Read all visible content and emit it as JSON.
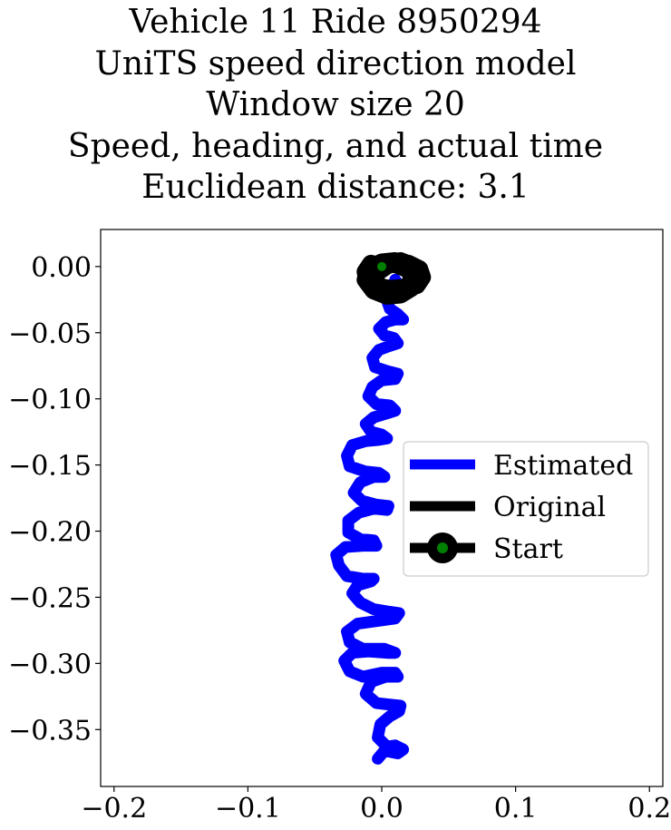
{
  "chart_data": {
    "type": "line",
    "title_lines": [
      "Vehicle 11 Ride 8950294",
      "UniTS speed direction model",
      "Window size 20",
      "Speed, heading, and actual time",
      "Euclidean distance: 3.1"
    ],
    "xlabel": "",
    "ylabel": "",
    "xlim": [
      -0.21,
      0.21
    ],
    "ylim": [
      -0.393,
      0.028
    ],
    "xticks": [
      -0.2,
      -0.1,
      0.0,
      0.1,
      0.2
    ],
    "xtick_labels": [
      "−0.2",
      "−0.1",
      "0.0",
      "0.1",
      "0.2"
    ],
    "yticks": [
      0.0,
      -0.05,
      -0.1,
      -0.15,
      -0.2,
      -0.25,
      -0.3,
      -0.35
    ],
    "ytick_labels": [
      "0.00",
      "−0.05",
      "−0.10",
      "−0.15",
      "−0.20",
      "−0.25",
      "−0.30",
      "−0.35"
    ],
    "grid": false,
    "legend_position": "center-right",
    "series": [
      {
        "name": "Estimated",
        "color": "#0000ff",
        "points": [
          [
            -0.003,
            -0.372
          ],
          [
            0.002,
            -0.366
          ],
          [
            0.012,
            -0.368
          ],
          [
            0.016,
            -0.365
          ],
          [
            0.01,
            -0.362
          ],
          [
            0.004,
            -0.363
          ],
          [
            -0.003,
            -0.356
          ],
          [
            -0.001,
            -0.346
          ],
          [
            0.006,
            -0.34
          ],
          [
            0.013,
            -0.336
          ],
          [
            0.014,
            -0.332
          ],
          [
            0.005,
            -0.331
          ],
          [
            -0.004,
            -0.33
          ],
          [
            -0.012,
            -0.323
          ],
          [
            -0.008,
            -0.314
          ],
          [
            0.003,
            -0.31
          ],
          [
            0.012,
            -0.31
          ],
          [
            0.01,
            -0.307
          ],
          [
            0.0,
            -0.307
          ],
          [
            -0.014,
            -0.31
          ],
          [
            -0.024,
            -0.306
          ],
          [
            -0.028,
            -0.298
          ],
          [
            -0.022,
            -0.292
          ],
          [
            -0.01,
            -0.291
          ],
          [
            0.004,
            -0.292
          ],
          [
            0.01,
            -0.292
          ],
          [
            0.002,
            -0.289
          ],
          [
            -0.014,
            -0.289
          ],
          [
            -0.024,
            -0.284
          ],
          [
            -0.026,
            -0.276
          ],
          [
            -0.018,
            -0.27
          ],
          [
            -0.004,
            -0.268
          ],
          [
            0.01,
            -0.266
          ],
          [
            0.013,
            -0.262
          ],
          [
            0.006,
            -0.261
          ],
          [
            -0.006,
            -0.259
          ],
          [
            -0.016,
            -0.254
          ],
          [
            -0.022,
            -0.247
          ],
          [
            -0.018,
            -0.241
          ],
          [
            -0.008,
            -0.238
          ],
          [
            -0.006,
            -0.236
          ],
          [
            -0.014,
            -0.236
          ],
          [
            -0.026,
            -0.234
          ],
          [
            -0.032,
            -0.226
          ],
          [
            -0.034,
            -0.218
          ],
          [
            -0.027,
            -0.212
          ],
          [
            -0.014,
            -0.211
          ],
          [
            -0.004,
            -0.211
          ],
          [
            -0.006,
            -0.207
          ],
          [
            -0.016,
            -0.206
          ],
          [
            -0.025,
            -0.201
          ],
          [
            -0.025,
            -0.192
          ],
          [
            -0.017,
            -0.186
          ],
          [
            -0.006,
            -0.183
          ],
          [
            0.004,
            -0.184
          ],
          [
            0.005,
            -0.181
          ],
          [
            -0.004,
            -0.18
          ],
          [
            -0.015,
            -0.177
          ],
          [
            -0.021,
            -0.171
          ],
          [
            -0.016,
            -0.163
          ],
          [
            -0.006,
            -0.159
          ],
          [
            0.002,
            -0.159
          ],
          [
            -0.002,
            -0.156
          ],
          [
            -0.012,
            -0.155
          ],
          [
            -0.024,
            -0.151
          ],
          [
            -0.026,
            -0.143
          ],
          [
            -0.022,
            -0.135
          ],
          [
            -0.012,
            -0.132
          ],
          [
            -0.002,
            -0.131
          ],
          [
            0.004,
            -0.13
          ],
          [
            0.0,
            -0.127
          ],
          [
            -0.008,
            -0.125
          ],
          [
            -0.012,
            -0.119
          ],
          [
            -0.006,
            -0.114
          ],
          [
            0.004,
            -0.111
          ],
          [
            0.01,
            -0.109
          ],
          [
            0.006,
            -0.105
          ],
          [
            -0.004,
            -0.104
          ],
          [
            -0.01,
            -0.098
          ],
          [
            -0.007,
            -0.091
          ],
          [
            0.0,
            -0.086
          ],
          [
            0.01,
            -0.085
          ],
          [
            0.012,
            -0.081
          ],
          [
            0.004,
            -0.079
          ],
          [
            -0.005,
            -0.076
          ],
          [
            -0.007,
            -0.069
          ],
          [
            -0.002,
            -0.063
          ],
          [
            0.006,
            -0.06
          ],
          [
            0.012,
            -0.058
          ],
          [
            0.009,
            -0.054
          ],
          [
            0.002,
            -0.052
          ],
          [
            -0.002,
            -0.047
          ],
          [
            0.003,
            -0.042
          ],
          [
            0.01,
            -0.04
          ],
          [
            0.016,
            -0.04
          ],
          [
            0.012,
            -0.036
          ],
          [
            0.006,
            -0.032
          ],
          [
            0.004,
            -0.026
          ],
          [
            0.008,
            -0.02
          ],
          [
            0.012,
            -0.013
          ],
          [
            0.01,
            -0.01
          ]
        ]
      },
      {
        "name": "Original",
        "color": "#000000",
        "points": [
          [
            0.0,
            0.0
          ],
          [
            -0.008,
            0.002
          ],
          [
            -0.012,
            -0.004
          ],
          [
            -0.01,
            -0.012
          ],
          [
            -0.002,
            -0.016
          ],
          [
            0.008,
            -0.017
          ],
          [
            0.018,
            -0.016
          ],
          [
            0.026,
            -0.014
          ],
          [
            0.03,
            -0.008
          ],
          [
            0.028,
            -0.002
          ],
          [
            0.02,
            0.002
          ],
          [
            0.01,
            0.004
          ],
          [
            0.0,
            0.003
          ],
          [
            -0.01,
            -0.002
          ],
          [
            -0.012,
            -0.01
          ],
          [
            -0.006,
            -0.018
          ],
          [
            0.004,
            -0.022
          ],
          [
            0.014,
            -0.021
          ],
          [
            0.022,
            -0.016
          ],
          [
            0.028,
            -0.008
          ],
          [
            0.024,
            0.0
          ],
          [
            0.014,
            0.004
          ],
          [
            0.004,
            0.001
          ],
          [
            -0.006,
            -0.006
          ],
          [
            -0.004,
            -0.014
          ],
          [
            0.006,
            -0.018
          ],
          [
            0.016,
            -0.018
          ],
          [
            0.024,
            -0.01
          ],
          [
            0.02,
            -0.002
          ],
          [
            0.01,
            0.002
          ]
        ]
      }
    ],
    "start_point": {
      "name": "Start",
      "x": 0.0,
      "y": 0.0,
      "color": "#008000"
    }
  }
}
